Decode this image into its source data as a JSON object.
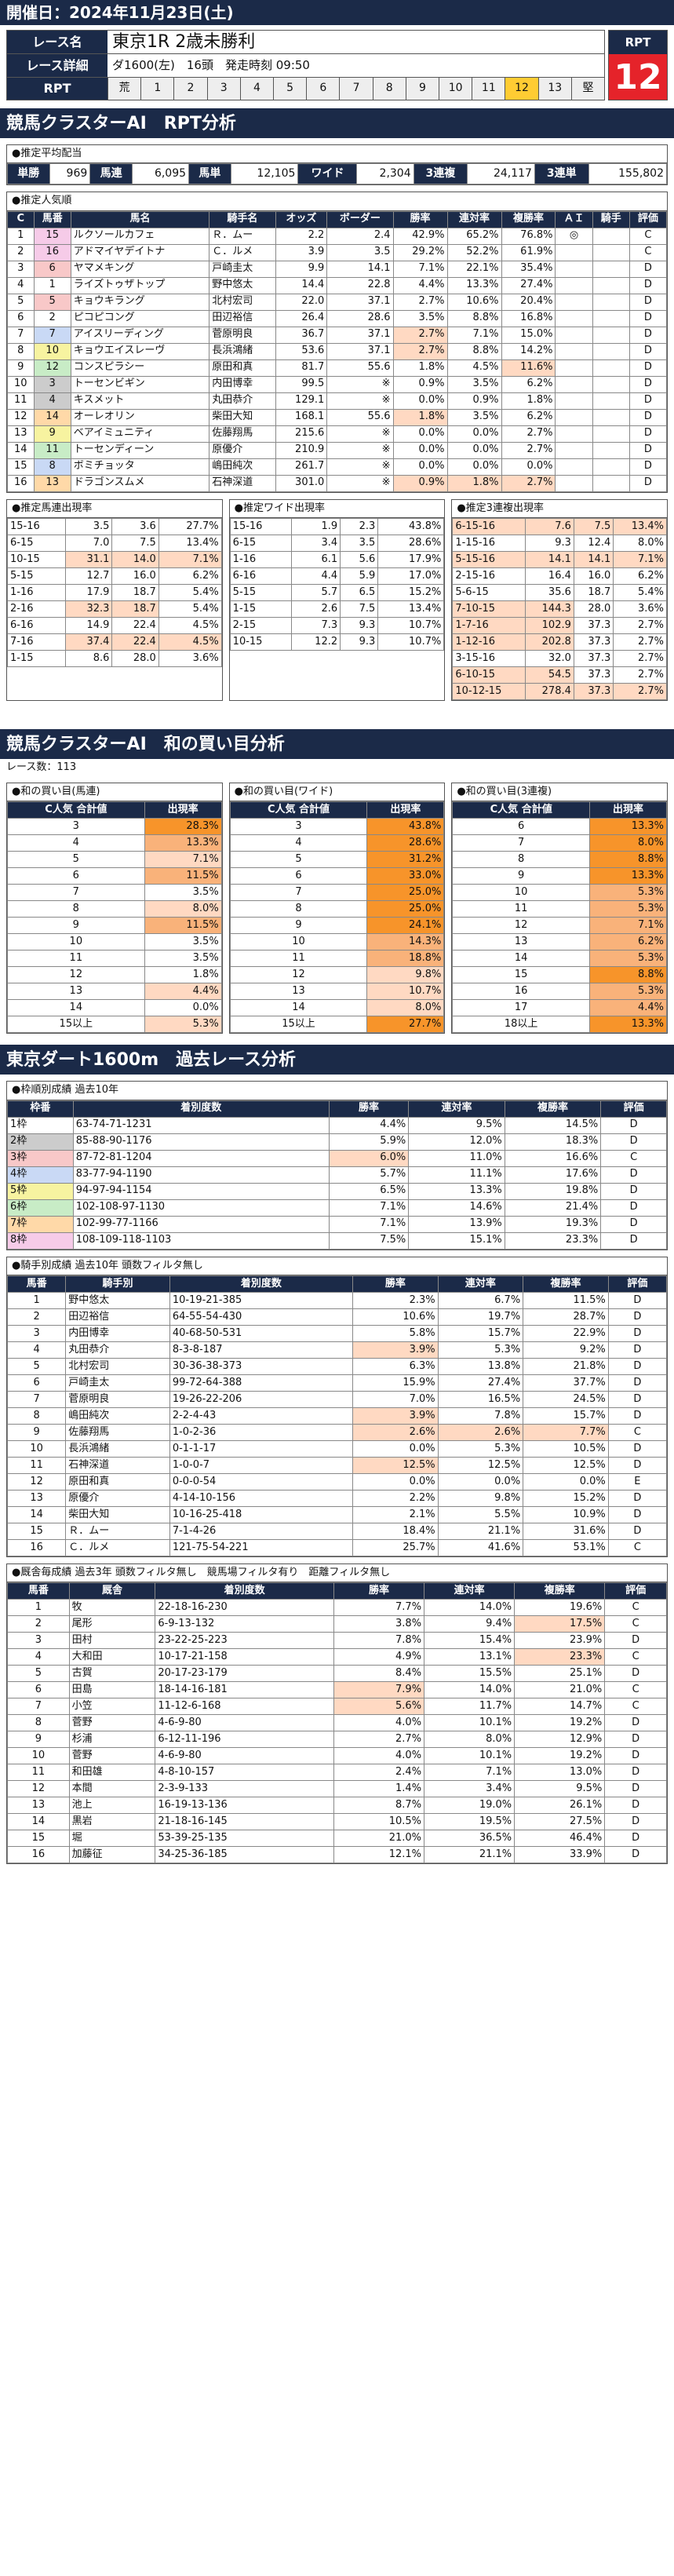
{
  "date_line": "開催日：2024年11月23日(土)",
  "race_name_label": "レース名",
  "race_name": "東京1R 2歳未勝利",
  "race_detail_label": "レース詳細",
  "race_detail": "ダ1600(左)　16頭　発走時刻 09:50",
  "rpt_label": "RPT",
  "rpt_value": "12",
  "gates": [
    "荒",
    "1",
    "2",
    "3",
    "4",
    "5",
    "6",
    "7",
    "8",
    "9",
    "10",
    "11",
    "12",
    "13",
    "堅"
  ],
  "s1": "競馬クラスターAI　RPT分析",
  "pay_title": "●推定平均配当",
  "payouts": [
    [
      "単勝",
      "969"
    ],
    [
      "馬連",
      "6,095"
    ],
    [
      "馬単",
      "12,105"
    ],
    [
      "ワイド",
      "2,304"
    ],
    [
      "3連複",
      "24,117"
    ],
    [
      "3連単",
      "155,802"
    ]
  ],
  "pop_title": "●推定人気順",
  "pop_headers": [
    "C",
    "馬番",
    "馬名",
    "騎手名",
    "オッズ",
    "ボーダー",
    "勝率",
    "連対率",
    "複勝率",
    "ＡＩ",
    "騎手",
    "評価"
  ],
  "pop_rows": [
    [
      "1",
      "15",
      "ルクソールカフェ",
      "Ｒ．ムー",
      "2.2",
      "2.4",
      "42.9%",
      "65.2%",
      "76.8%",
      "◎",
      "",
      "C"
    ],
    [
      "2",
      "16",
      "アドマイヤデイトナ",
      "Ｃ．ルメ",
      "3.9",
      "3.5",
      "29.2%",
      "52.2%",
      "61.9%",
      "",
      "",
      "C"
    ],
    [
      "3",
      "6",
      "ヤマメキング",
      "戸崎圭太",
      "9.9",
      "14.1",
      "7.1%",
      "22.1%",
      "35.4%",
      "",
      "",
      "D"
    ],
    [
      "4",
      "1",
      "ライズトゥザトップ",
      "野中悠太",
      "14.4",
      "22.8",
      "4.4%",
      "13.3%",
      "27.4%",
      "",
      "",
      "D"
    ],
    [
      "5",
      "5",
      "キョウキラング",
      "北村宏司",
      "22.0",
      "37.1",
      "2.7%",
      "10.6%",
      "20.4%",
      "",
      "",
      "D"
    ],
    [
      "6",
      "2",
      "ピコピコング",
      "田辺裕信",
      "26.4",
      "28.6",
      "3.5%",
      "8.8%",
      "16.8%",
      "",
      "",
      "D"
    ],
    [
      "7",
      "7",
      "アイスリーディング",
      "菅原明良",
      "36.7",
      "37.1",
      "2.7%",
      "7.1%",
      "15.0%",
      "",
      "",
      "D"
    ],
    [
      "8",
      "10",
      "キョウエイスレーヴ",
      "長浜鴻緒",
      "53.6",
      "37.1",
      "2.7%",
      "8.8%",
      "14.2%",
      "",
      "",
      "D"
    ],
    [
      "9",
      "12",
      "コンスピラシー",
      "原田和真",
      "81.7",
      "55.6",
      "1.8%",
      "4.5%",
      "11.6%",
      "",
      "",
      "D"
    ],
    [
      "10",
      "3",
      "トーセンビギン",
      "内田博幸",
      "99.5",
      "※",
      "0.9%",
      "3.5%",
      "6.2%",
      "",
      "",
      "D"
    ],
    [
      "11",
      "4",
      "キスメット",
      "丸田恭介",
      "129.1",
      "※",
      "0.0%",
      "0.9%",
      "1.8%",
      "",
      "",
      "D"
    ],
    [
      "12",
      "14",
      "オーレオリン",
      "柴田大知",
      "168.1",
      "55.6",
      "1.8%",
      "3.5%",
      "6.2%",
      "",
      "",
      "D"
    ],
    [
      "13",
      "9",
      "ベアイミュニティ",
      "佐藤翔馬",
      "215.6",
      "※",
      "0.0%",
      "0.0%",
      "2.7%",
      "",
      "",
      "D"
    ],
    [
      "14",
      "11",
      "トーセンディーン",
      "原優介",
      "210.9",
      "※",
      "0.0%",
      "0.0%",
      "2.7%",
      "",
      "",
      "D"
    ],
    [
      "15",
      "8",
      "ボミチョッタ",
      "嶋田純次",
      "261.7",
      "※",
      "0.0%",
      "0.0%",
      "0.0%",
      "",
      "",
      "D"
    ],
    [
      "16",
      "13",
      "ドラゴンスムメ",
      "石神深道",
      "301.0",
      "※",
      "0.9%",
      "1.8%",
      "2.7%",
      "",
      "",
      "D"
    ]
  ],
  "pop_wakus": [
    8,
    8,
    3,
    1,
    3,
    1,
    4,
    5,
    6,
    2,
    2,
    7,
    5,
    6,
    4,
    7
  ],
  "pop_pk": [
    [],
    [],
    [],
    [],
    [],
    [],
    [
      6
    ],
    [
      6
    ],
    [
      8
    ],
    [],
    [],
    [
      6
    ],
    [],
    [],
    [],
    [
      6,
      7,
      8
    ]
  ],
  "ub_title": "●推定馬連出現率",
  "wd_title": "●推定ワイド出現率",
  "tr_title": "●推定3連複出現率",
  "ub_rows": [
    [
      "15-16",
      "3.5",
      "3.6",
      "27.7%"
    ],
    [
      "6-15",
      "7.0",
      "7.5",
      "13.4%"
    ],
    [
      "10-15",
      "31.1",
      "14.0",
      "7.1%"
    ],
    [
      "5-15",
      "12.7",
      "16.0",
      "6.2%"
    ],
    [
      "1-16",
      "17.9",
      "18.7",
      "5.4%"
    ],
    [
      "2-16",
      "32.3",
      "18.7",
      "5.4%"
    ],
    [
      "6-16",
      "14.9",
      "22.4",
      "4.5%"
    ],
    [
      "7-16",
      "37.4",
      "22.4",
      "4.5%"
    ],
    [
      "1-15",
      "8.6",
      "28.0",
      "3.6%"
    ]
  ],
  "wd_rows": [
    [
      "15-16",
      "1.9",
      "2.3",
      "43.8%"
    ],
    [
      "6-15",
      "3.4",
      "3.5",
      "28.6%"
    ],
    [
      "1-16",
      "6.1",
      "5.6",
      "17.9%"
    ],
    [
      "6-16",
      "4.4",
      "5.9",
      "17.0%"
    ],
    [
      "5-15",
      "5.7",
      "6.5",
      "15.2%"
    ],
    [
      "1-15",
      "2.6",
      "7.5",
      "13.4%"
    ],
    [
      "2-15",
      "7.3",
      "9.3",
      "10.7%"
    ],
    [
      "10-15",
      "12.2",
      "9.3",
      "10.7%"
    ]
  ],
  "tr_rows": [
    [
      "6-15-16",
      "7.6",
      "7.5",
      "13.4%"
    ],
    [
      "1-15-16",
      "9.3",
      "12.4",
      "8.0%"
    ],
    [
      "5-15-16",
      "14.1",
      "14.1",
      "7.1%"
    ],
    [
      "2-15-16",
      "16.4",
      "16.0",
      "6.2%"
    ],
    [
      "5-6-15",
      "35.6",
      "18.7",
      "5.4%"
    ],
    [
      "7-10-15",
      "144.3",
      "28.0",
      "3.6%"
    ],
    [
      "1-7-16",
      "102.9",
      "37.3",
      "2.7%"
    ],
    [
      "1-12-16",
      "202.8",
      "37.3",
      "2.7%"
    ],
    [
      "3-15-16",
      "32.0",
      "37.3",
      "2.7%"
    ],
    [
      "6-10-15",
      "54.5",
      "37.3",
      "2.7%"
    ],
    [
      "10-12-15",
      "278.4",
      "37.3",
      "2.7%"
    ]
  ],
  "ub_pk": [
    [],
    [],
    [
      1,
      2,
      3
    ],
    [],
    [],
    [
      1,
      2
    ],
    [],
    [
      1,
      2,
      3
    ],
    []
  ],
  "wd_pk": [
    [],
    [],
    [],
    [],
    [],
    [],
    [],
    []
  ],
  "tr_pk": [
    [
      0,
      1,
      2,
      3
    ],
    [],
    [
      0,
      1,
      2,
      3
    ],
    [],
    [],
    [
      0,
      1
    ],
    [
      0,
      1
    ],
    [
      0,
      1
    ],
    [],
    [
      0,
      1
    ],
    [
      0,
      1,
      2,
      3
    ]
  ],
  "s2": "競馬クラスターAI　和の買い目分析",
  "race_count": "レース数：113",
  "sum_titles": [
    "●和の買い目(馬連)",
    "●和の買い目(ワイド)",
    "●和の買い目(3連複)"
  ],
  "sum_h1": "C人気 合計値",
  "sum_h2": "出現率",
  "sum_ub": [
    [
      "3",
      "28.3%"
    ],
    [
      "4",
      "13.3%"
    ],
    [
      "5",
      "7.1%"
    ],
    [
      "6",
      "11.5%"
    ],
    [
      "7",
      "3.5%"
    ],
    [
      "8",
      "8.0%"
    ],
    [
      "9",
      "11.5%"
    ],
    [
      "10",
      "3.5%"
    ],
    [
      "11",
      "3.5%"
    ],
    [
      "12",
      "1.8%"
    ],
    [
      "13",
      "4.4%"
    ],
    [
      "14",
      "0.0%"
    ],
    [
      "15以上",
      "5.3%"
    ]
  ],
  "sum_ub_pct": [
    28.3,
    13.3,
    7.1,
    11.5,
    3.5,
    8.0,
    11.5,
    3.5,
    3.5,
    1.8,
    4.4,
    0.0,
    5.3
  ],
  "sum_wd": [
    [
      "3",
      "43.8%"
    ],
    [
      "4",
      "28.6%"
    ],
    [
      "5",
      "31.2%"
    ],
    [
      "6",
      "33.0%"
    ],
    [
      "7",
      "25.0%"
    ],
    [
      "8",
      "25.0%"
    ],
    [
      "9",
      "24.1%"
    ],
    [
      "10",
      "14.3%"
    ],
    [
      "11",
      "18.8%"
    ],
    [
      "12",
      "9.8%"
    ],
    [
      "13",
      "10.7%"
    ],
    [
      "14",
      "8.0%"
    ],
    [
      "15以上",
      "27.7%"
    ]
  ],
  "sum_wd_pct": [
    43.8,
    28.6,
    31.2,
    33.0,
    25.0,
    25.0,
    24.1,
    14.3,
    18.8,
    9.8,
    10.7,
    8.0,
    27.7
  ],
  "sum_tr": [
    [
      "6",
      "13.3%"
    ],
    [
      "7",
      "8.0%"
    ],
    [
      "8",
      "8.8%"
    ],
    [
      "9",
      "13.3%"
    ],
    [
      "10",
      "5.3%"
    ],
    [
      "11",
      "5.3%"
    ],
    [
      "12",
      "7.1%"
    ],
    [
      "13",
      "6.2%"
    ],
    [
      "14",
      "5.3%"
    ],
    [
      "15",
      "8.8%"
    ],
    [
      "16",
      "5.3%"
    ],
    [
      "17",
      "4.4%"
    ],
    [
      "18以上",
      "13.3%"
    ]
  ],
  "sum_tr_pct": [
    13.3,
    8.0,
    8.8,
    13.3,
    5.3,
    5.3,
    7.1,
    6.2,
    5.3,
    8.8,
    5.3,
    4.4,
    13.3
  ],
  "s3": "東京ダート1600m　過去レース分析",
  "waku_title": "●枠順別成績 過去10年",
  "waku_headers": [
    "枠番",
    "着別度数",
    "勝率",
    "連対率",
    "複勝率",
    "評価"
  ],
  "waku_rows": [
    [
      "1枠",
      "63-74-71-1231",
      "4.4%",
      "9.5%",
      "14.5%",
      "D"
    ],
    [
      "2枠",
      "85-88-90-1176",
      "5.9%",
      "12.0%",
      "18.3%",
      "D"
    ],
    [
      "3枠",
      "87-72-81-1204",
      "6.0%",
      "11.0%",
      "16.6%",
      "C"
    ],
    [
      "4枠",
      "83-77-94-1190",
      "5.7%",
      "11.1%",
      "17.6%",
      "D"
    ],
    [
      "5枠",
      "94-97-94-1154",
      "6.5%",
      "13.3%",
      "19.8%",
      "D"
    ],
    [
      "6枠",
      "102-108-97-1130",
      "7.1%",
      "14.6%",
      "21.4%",
      "D"
    ],
    [
      "7枠",
      "102-99-77-1166",
      "7.1%",
      "13.9%",
      "19.3%",
      "D"
    ],
    [
      "8枠",
      "108-109-118-1103",
      "7.5%",
      "15.1%",
      "23.3%",
      "D"
    ]
  ],
  "waku_pk": [
    [],
    [],
    [
      2
    ],
    [],
    [],
    [],
    [],
    []
  ],
  "jk_title": "●騎手別成績 過去10年 頭数フィルタ無し",
  "jk_headers": [
    "馬番",
    "騎手別",
    "着別度数",
    "勝率",
    "連対率",
    "複勝率",
    "評価"
  ],
  "jk_rows": [
    [
      "1",
      "野中悠太",
      "10-19-21-385",
      "2.3%",
      "6.7%",
      "11.5%",
      "D"
    ],
    [
      "2",
      "田辺裕信",
      "64-55-54-430",
      "10.6%",
      "19.7%",
      "28.7%",
      "D"
    ],
    [
      "3",
      "内田博幸",
      "40-68-50-531",
      "5.8%",
      "15.7%",
      "22.9%",
      "D"
    ],
    [
      "4",
      "丸田恭介",
      "8-3-8-187",
      "3.9%",
      "5.3%",
      "9.2%",
      "D"
    ],
    [
      "5",
      "北村宏司",
      "30-36-38-373",
      "6.3%",
      "13.8%",
      "21.8%",
      "D"
    ],
    [
      "6",
      "戸崎圭太",
      "99-72-64-388",
      "15.9%",
      "27.4%",
      "37.7%",
      "D"
    ],
    [
      "7",
      "菅原明良",
      "19-26-22-206",
      "7.0%",
      "16.5%",
      "24.5%",
      "D"
    ],
    [
      "8",
      "嶋田純次",
      "2-2-4-43",
      "3.9%",
      "7.8%",
      "15.7%",
      "D"
    ],
    [
      "9",
      "佐藤翔馬",
      "1-0-2-36",
      "2.6%",
      "2.6%",
      "7.7%",
      "C"
    ],
    [
      "10",
      "長浜鴻緒",
      "0-1-1-17",
      "0.0%",
      "5.3%",
      "10.5%",
      "D"
    ],
    [
      "11",
      "石神深道",
      "1-0-0-7",
      "12.5%",
      "12.5%",
      "12.5%",
      "D"
    ],
    [
      "12",
      "原田和真",
      "0-0-0-54",
      "0.0%",
      "0.0%",
      "0.0%",
      "E"
    ],
    [
      "13",
      "原優介",
      "4-14-10-156",
      "2.2%",
      "9.8%",
      "15.2%",
      "D"
    ],
    [
      "14",
      "柴田大知",
      "10-16-25-418",
      "2.1%",
      "5.5%",
      "10.9%",
      "D"
    ],
    [
      "15",
      "Ｒ．ムー",
      "7-1-4-26",
      "18.4%",
      "21.1%",
      "31.6%",
      "D"
    ],
    [
      "16",
      "Ｃ．ルメ",
      "121-75-54-221",
      "25.7%",
      "41.6%",
      "53.1%",
      "C"
    ]
  ],
  "jk_pk": [
    [],
    [],
    [],
    [
      3
    ],
    [],
    [],
    [],
    [
      3
    ],
    [
      3,
      4,
      5
    ],
    [],
    [
      3
    ],
    [],
    [],
    [],
    [],
    []
  ],
  "tr2_title": "●厩舎毎成績 過去3年 頭数フィルタ無し　競馬場フィルタ有り　距離フィルタ無し",
  "tr2_headers": [
    "馬番",
    "厩舎",
    "着別度数",
    "勝率",
    "連対率",
    "複勝率",
    "評価"
  ],
  "tr2_rows": [
    [
      "1",
      "牧",
      "22-18-16-230",
      "7.7%",
      "14.0%",
      "19.6%",
      "C"
    ],
    [
      "2",
      "尾形",
      "6-9-13-132",
      "3.8%",
      "9.4%",
      "17.5%",
      "C"
    ],
    [
      "3",
      "田村",
      "23-22-25-223",
      "7.8%",
      "15.4%",
      "23.9%",
      "D"
    ],
    [
      "4",
      "大和田",
      "10-17-21-158",
      "4.9%",
      "13.1%",
      "23.3%",
      "C"
    ],
    [
      "5",
      "古賀",
      "20-17-23-179",
      "8.4%",
      "15.5%",
      "25.1%",
      "D"
    ],
    [
      "6",
      "田島",
      "18-14-16-181",
      "7.9%",
      "14.0%",
      "21.0%",
      "C"
    ],
    [
      "7",
      "小笠",
      "11-12-6-168",
      "5.6%",
      "11.7%",
      "14.7%",
      "C"
    ],
    [
      "8",
      "菅野",
      "4-6-9-80",
      "4.0%",
      "10.1%",
      "19.2%",
      "D"
    ],
    [
      "9",
      "杉浦",
      "6-12-11-196",
      "2.7%",
      "8.0%",
      "12.9%",
      "D"
    ],
    [
      "10",
      "菅野",
      "4-6-9-80",
      "4.0%",
      "10.1%",
      "19.2%",
      "D"
    ],
    [
      "11",
      "和田雄",
      "4-8-10-157",
      "2.4%",
      "7.1%",
      "13.0%",
      "D"
    ],
    [
      "12",
      "本間",
      "2-3-9-133",
      "1.4%",
      "3.4%",
      "9.5%",
      "D"
    ],
    [
      "13",
      "池上",
      "16-19-13-136",
      "8.7%",
      "19.0%",
      "26.1%",
      "D"
    ],
    [
      "14",
      "黒岩",
      "21-18-16-145",
      "10.5%",
      "19.5%",
      "27.5%",
      "D"
    ],
    [
      "15",
      "堀",
      "53-39-25-135",
      "21.0%",
      "36.5%",
      "46.4%",
      "D"
    ],
    [
      "16",
      "加藤征",
      "34-25-36-185",
      "12.1%",
      "21.1%",
      "33.9%",
      "D"
    ]
  ],
  "tr2_pk": [
    [],
    [
      5
    ],
    [],
    [
      5
    ],
    [],
    [
      3
    ],
    [
      3
    ],
    [],
    [],
    [],
    [],
    [],
    [],
    [],
    [],
    []
  ]
}
